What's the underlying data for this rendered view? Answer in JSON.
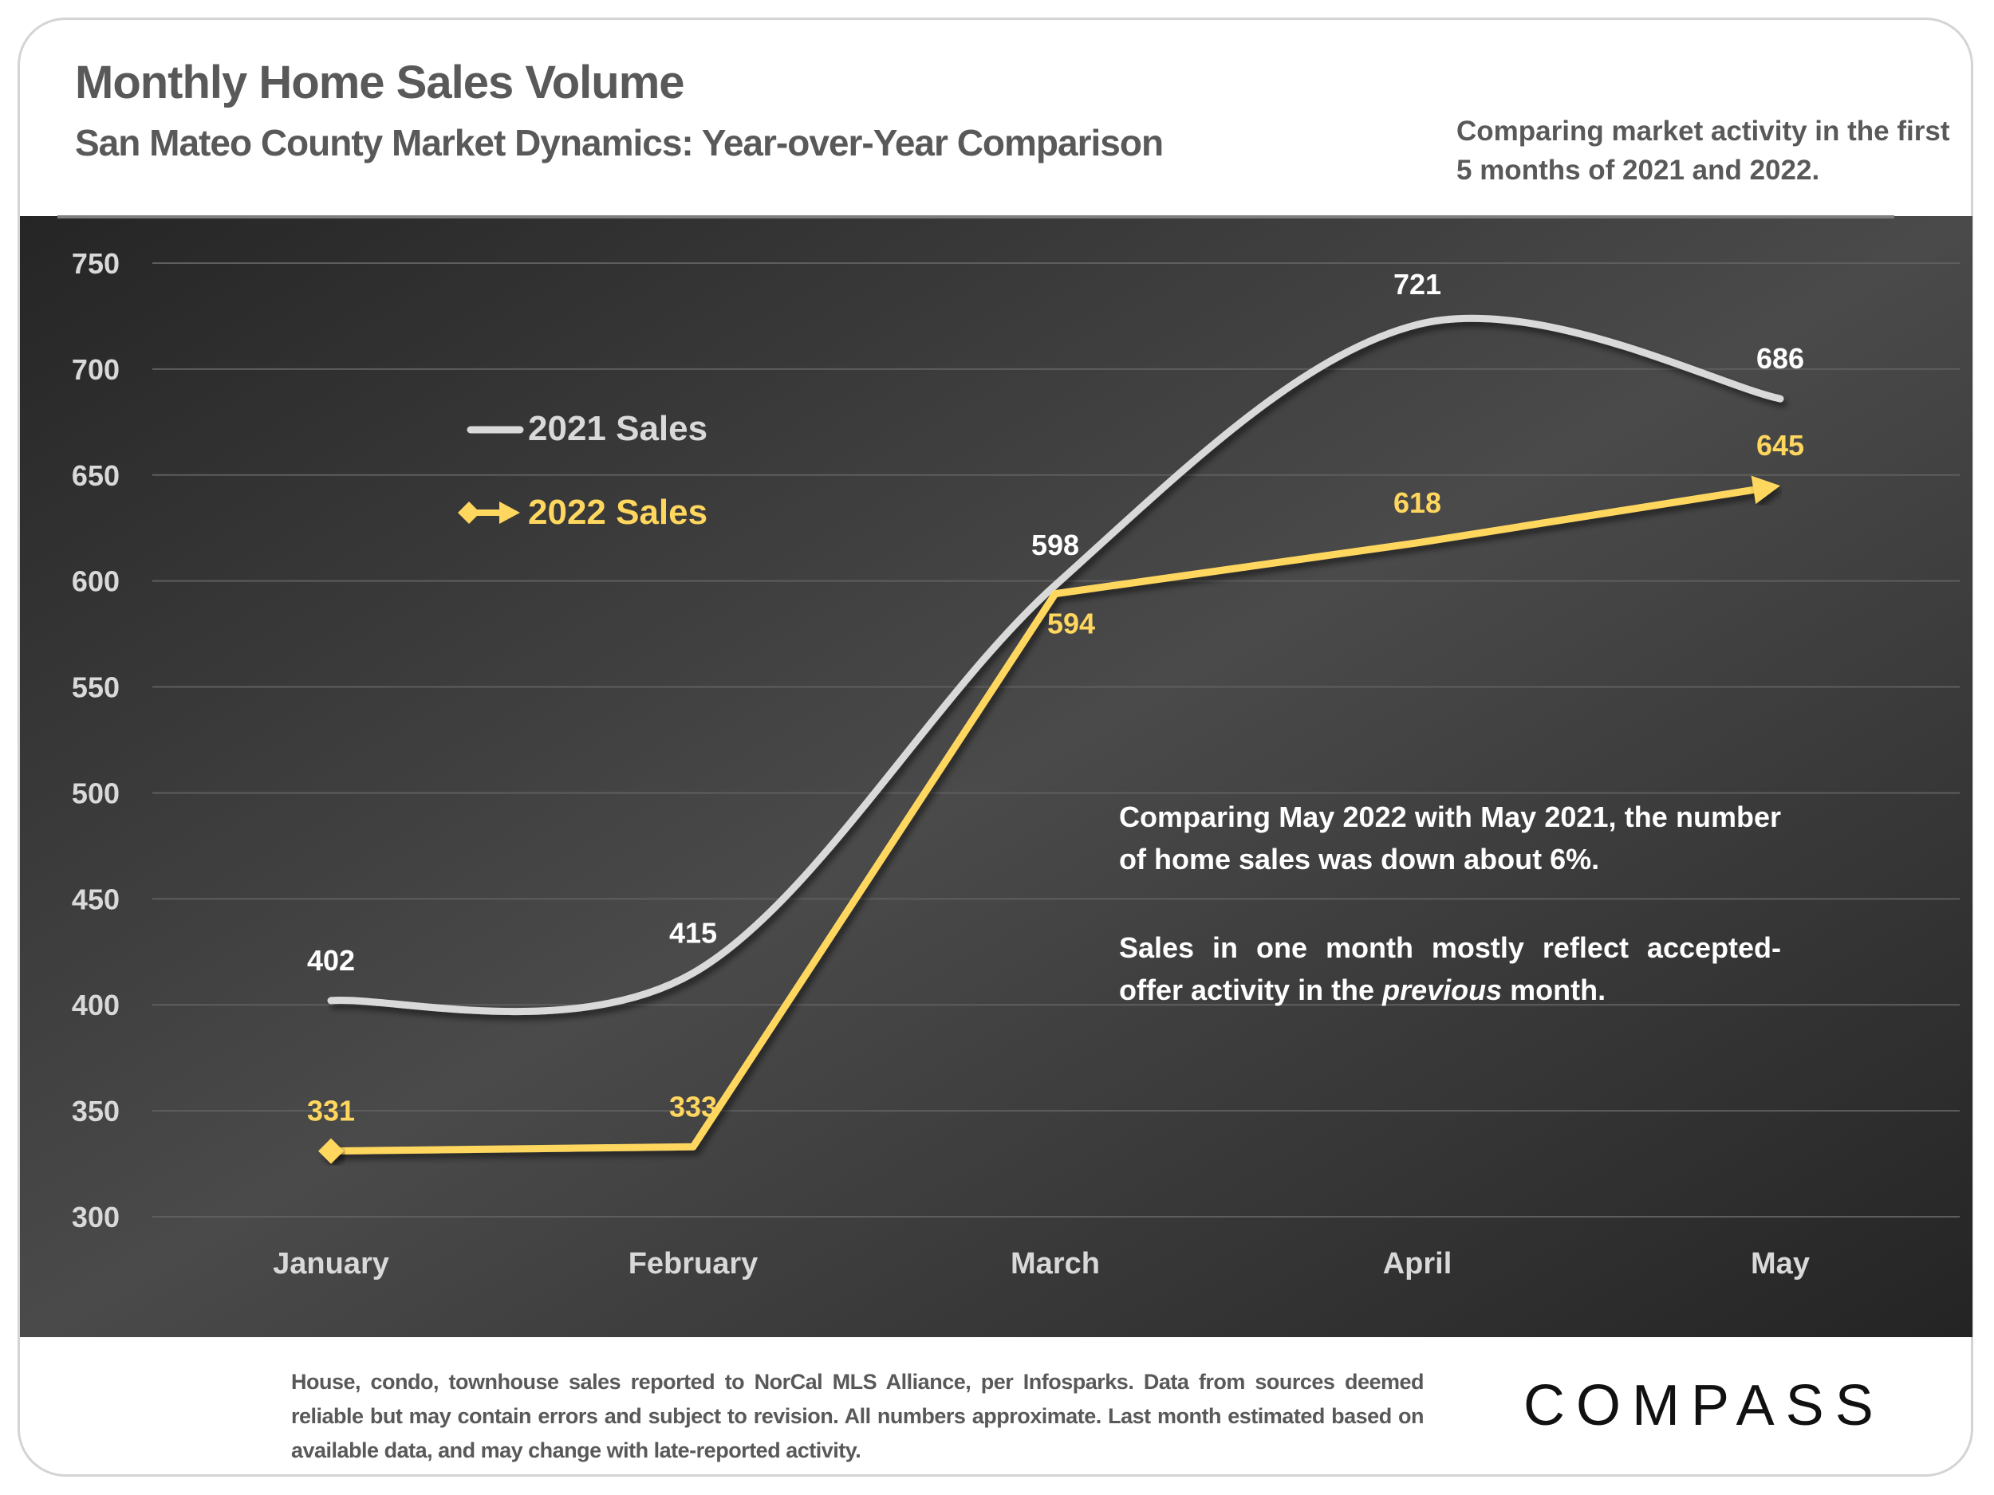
{
  "header": {
    "title": "Monthly Home Sales Volume",
    "subtitle": "San Mateo County Market Dynamics: Year-over-Year Comparison",
    "note": "Comparing market activity in the first 5 months of 2021 and 2022."
  },
  "annotation": {
    "paragraph1": "Comparing May 2022 with May 2021, the number of home sales was down about 6%.",
    "paragraph2_before": "Sales in one month mostly reflect accepted-offer activity in the ",
    "paragraph2_em": "previous",
    "paragraph2_after": " month."
  },
  "footer": {
    "disclaimer": "House, condo, townhouse sales reported to NorCal MLS Alliance, per Infosparks. Data from sources deemed reliable but may contain errors and subject to revision. All numbers approximate. Last month estimated based on available data, and may change with late-reported activity.",
    "logo": "COMPASS"
  },
  "colors": {
    "series_2021": "#D9D9D9",
    "series_2022": "#FFD75E",
    "panel_dark": "#262626",
    "panel_light": "#555555",
    "text_gray": "#595959"
  },
  "chart_data": {
    "type": "line",
    "title": "Monthly Home Sales Volume",
    "xlabel": "",
    "ylabel": "",
    "categories": [
      "January",
      "February",
      "March",
      "April",
      "May"
    ],
    "ylim": [
      300,
      750
    ],
    "yticks": [
      300,
      350,
      400,
      450,
      500,
      550,
      600,
      650,
      700,
      750
    ],
    "grid": true,
    "legend_position": "top-left",
    "series": [
      {
        "name": "2021 Sales",
        "values": [
          402,
          415,
          598,
          721,
          686
        ],
        "smooth": true,
        "marker": "none"
      },
      {
        "name": "2022 Sales",
        "values": [
          331,
          333,
          594,
          618,
          645
        ],
        "smooth": false,
        "marker": "diamond-start-arrow-end"
      }
    ]
  }
}
